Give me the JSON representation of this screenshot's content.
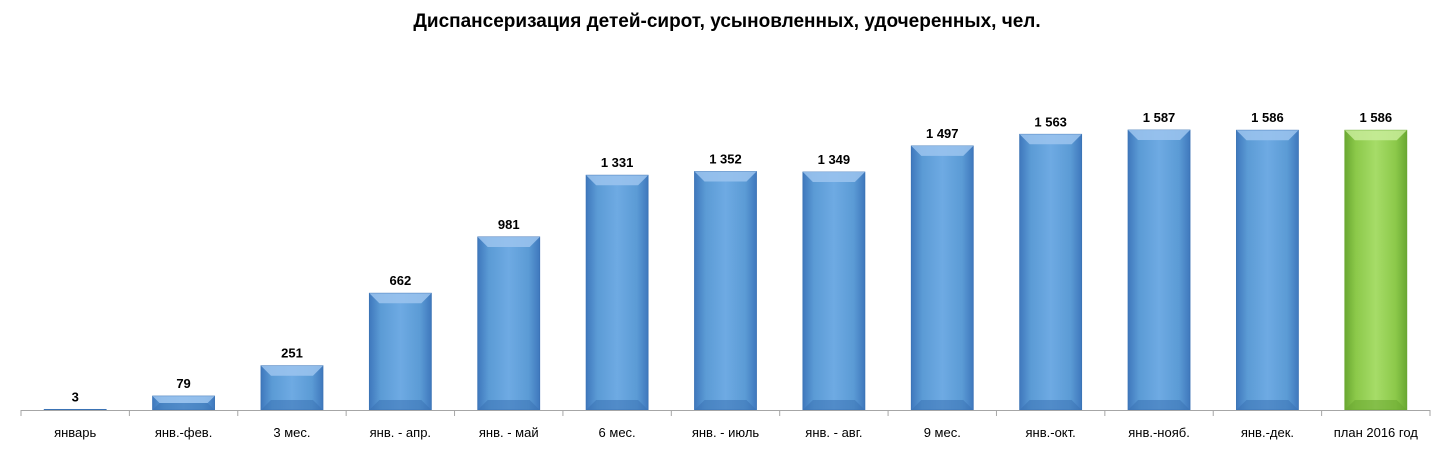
{
  "chart_data": {
    "type": "bar",
    "title": "Диспансеризация детей-сирот, усыновленных, удочеренных, чел.",
    "xlabel": "",
    "ylabel": "",
    "ylim": [
      0,
      1750
    ],
    "grid": false,
    "legend": "none",
    "categories": [
      "январь",
      "янв.-фев.",
      "3 мес.",
      "янв. - апр.",
      "янв. - май",
      "6 мес.",
      "янв. - июль",
      "янв. - авг.",
      "9 мес.",
      "янв.-окт.",
      "янв.-нояб.",
      "янв.-дек.",
      "план 2016 год"
    ],
    "values": [
      3,
      79,
      251,
      662,
      981,
      1331,
      1352,
      1349,
      1497,
      1563,
      1587,
      1586,
      1586
    ],
    "value_labels": [
      "3",
      "79",
      "251",
      "662",
      "981",
      "1 331",
      "1 352",
      "1 349",
      "1 497",
      "1 563",
      "1 587",
      "1 586",
      "1 586"
    ],
    "colors": {
      "actual": "#5b9bd5",
      "actual_dark": "#3a72b4",
      "actual_light": "#9cc4ee",
      "plan": "#92d050",
      "plan_dark": "#6aa832",
      "plan_light": "#c8ec9a",
      "axis": "#a6a6a6"
    },
    "highlight_index": 12
  }
}
